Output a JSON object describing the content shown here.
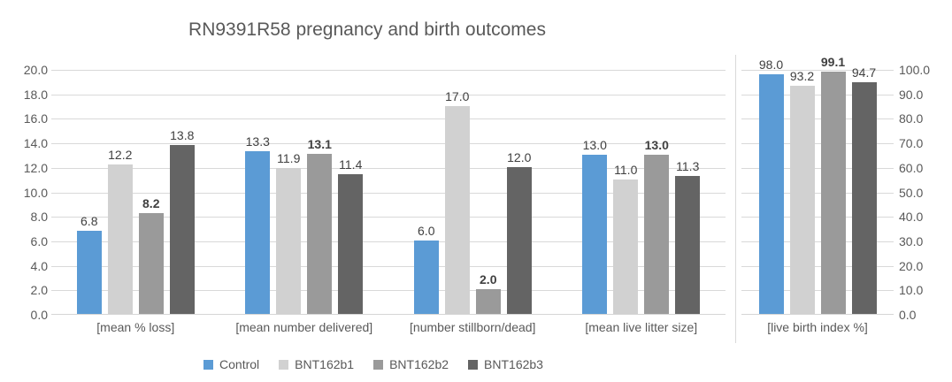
{
  "chart_data": {
    "type": "bar",
    "title": "RN9391R58 pregnancy and birth outcomes",
    "categories": [
      "[mean % loss]",
      "[mean number delivered]",
      "[number stillborn/dead]",
      "[mean live litter size]",
      "[live birth index %]"
    ],
    "series": [
      {
        "name": "Control",
        "color": "#5B9BD5",
        "values": [
          6.8,
          13.3,
          6.0,
          13.0,
          98.0
        ],
        "label_bold": false
      },
      {
        "name": "BNT162b1",
        "color": "#D1D1D1",
        "values": [
          12.2,
          11.9,
          17.0,
          11.0,
          93.2
        ],
        "label_bold": false
      },
      {
        "name": "BNT162b2",
        "color": "#9A9A9A",
        "values": [
          8.2,
          13.1,
          2.0,
          13.0,
          99.1
        ],
        "label_bold": true
      },
      {
        "name": "BNT162b3",
        "color": "#646464",
        "values": [
          13.8,
          11.4,
          12.0,
          11.3,
          94.7
        ],
        "label_bold": false
      }
    ],
    "left_axis": {
      "min": 0,
      "max": 20,
      "step": 2,
      "categories": [
        0,
        1,
        2,
        3
      ],
      "tick_decimals": 1
    },
    "right_axis": {
      "min": 0,
      "max": 100,
      "step": 10,
      "categories": [
        4
      ],
      "tick_decimals": 1
    },
    "value_label_decimals": 1,
    "grid": true,
    "legend_position": "bottom",
    "colors": {
      "gridline": "#D9D9D9",
      "axis_text": "#595959",
      "value_label_text": "#404040",
      "title_text": "#595959"
    }
  }
}
